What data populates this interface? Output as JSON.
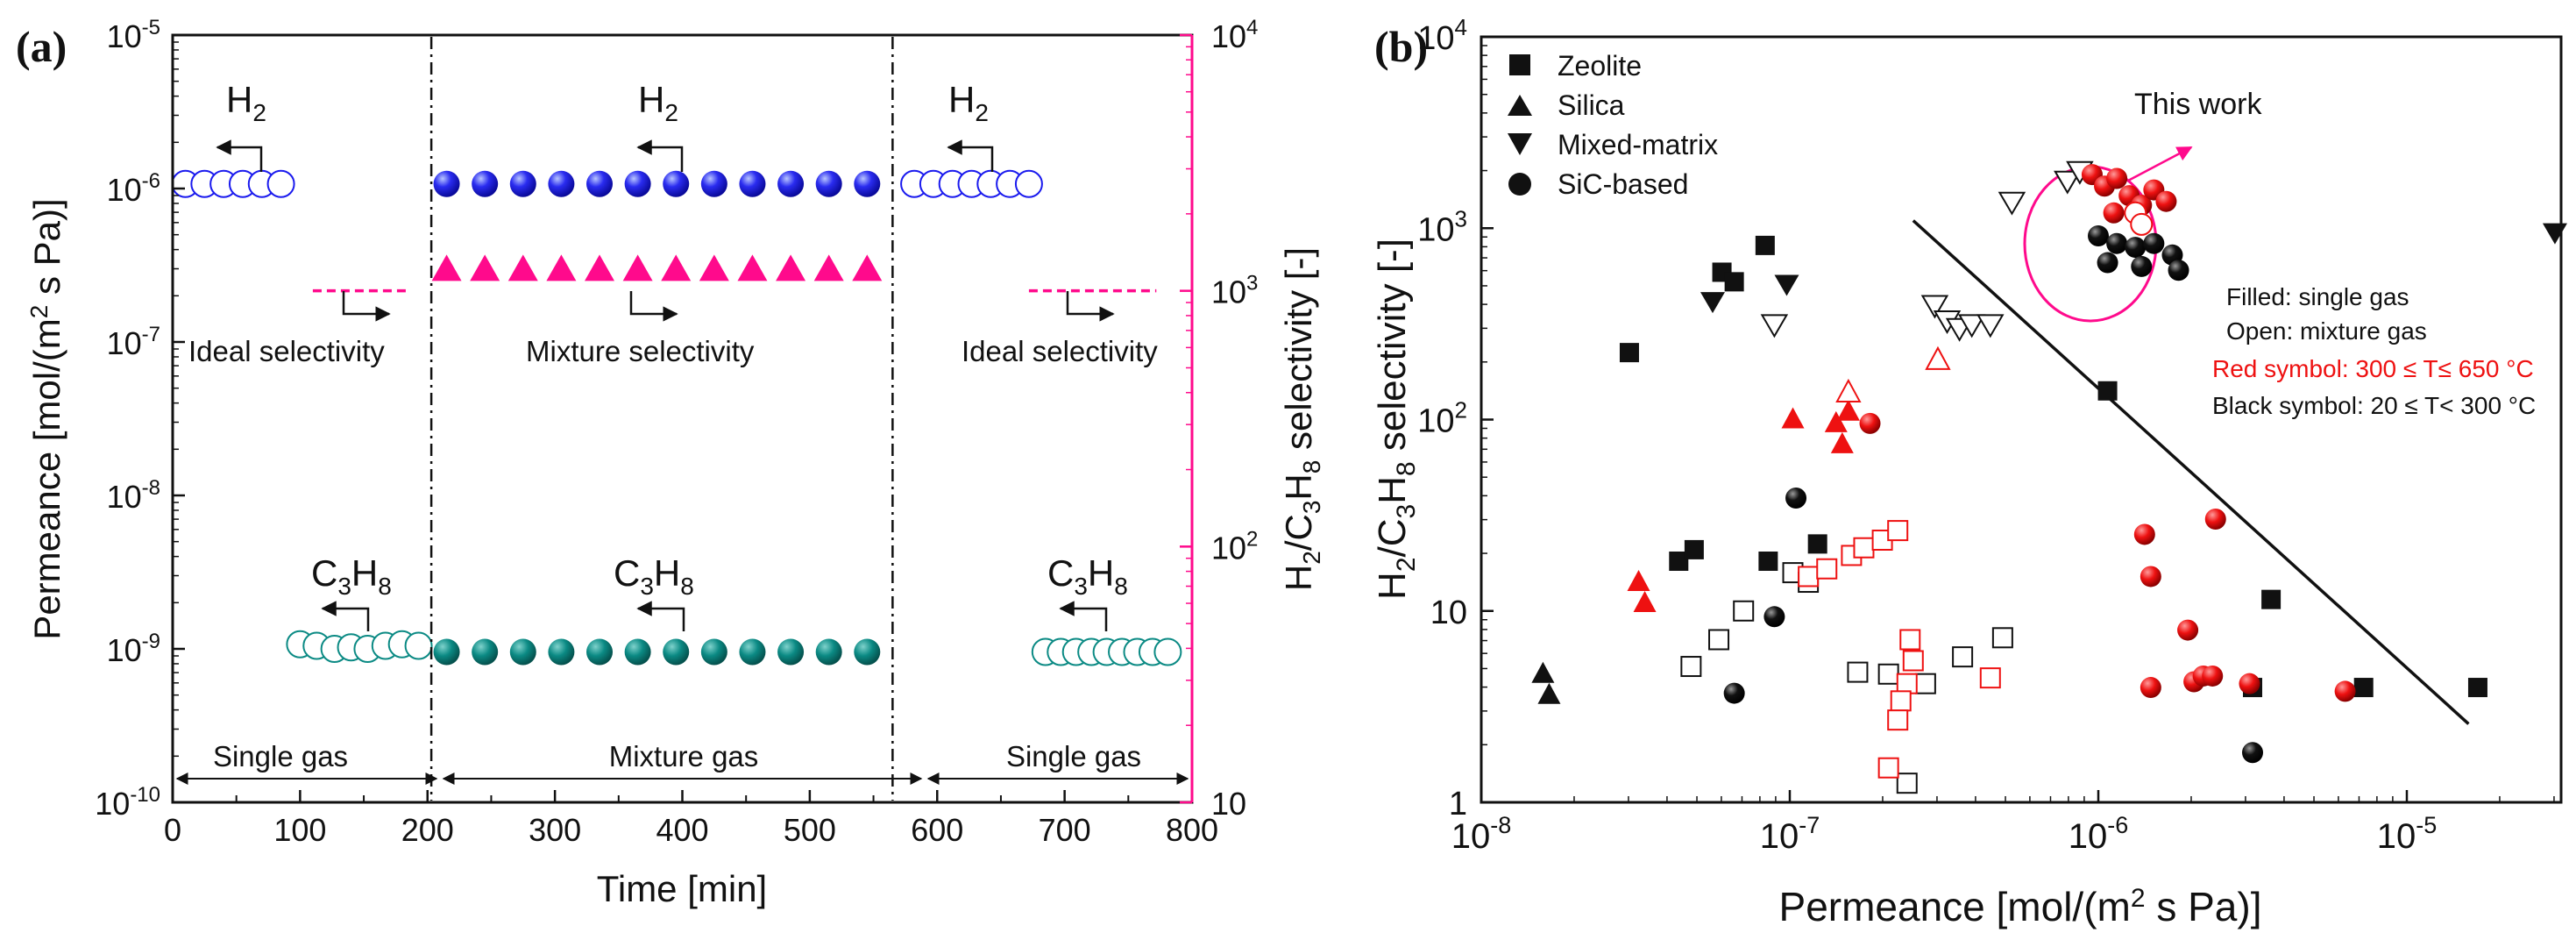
{
  "colors": {
    "h2_blue": "#1a1aee",
    "c3h8_teal": "#0b8a84",
    "sel_magenta": "#ff0a8c",
    "red": "#ee1111",
    "black": "#111111"
  },
  "chart_data": [
    {
      "panel_label": "(a)",
      "type": "scatter",
      "xlabel": "Time [min]",
      "ylabel": "Permeance [mol/(m² s Pa)]",
      "ylabel_right": "H2/C3H8 selectivity [-]",
      "xlim": [
        0,
        800
      ],
      "ylim_log": [
        -10,
        -5
      ],
      "ylim_right_log": [
        1,
        4
      ],
      "x_ticks": [
        "0",
        "100",
        "200",
        "300",
        "400",
        "500",
        "600",
        "700",
        "800"
      ],
      "y_ticks": [
        {
          "base": "10",
          "exp": "-10"
        },
        {
          "base": "10",
          "exp": "-9"
        },
        {
          "base": "10",
          "exp": "-8"
        },
        {
          "base": "10",
          "exp": "-7"
        },
        {
          "base": "10",
          "exp": "-6"
        },
        {
          "base": "10",
          "exp": "-5"
        }
      ],
      "y_right_ticks": [
        {
          "base": "10",
          "exp": ""
        },
        {
          "base": "10",
          "exp": "2"
        },
        {
          "base": "10",
          "exp": "3"
        },
        {
          "base": "10",
          "exp": "4"
        }
      ],
      "separators_min": [
        203,
        565
      ],
      "segment_labels": [
        "Single gas",
        "Mixture gas",
        "Single gas"
      ],
      "h2_label": "H2",
      "c3h8_label": "C3H8",
      "ideal_selectivity_label": "Ideal selectivity",
      "mixture_selectivity_label": "Mixture selectivity",
      "series": [
        {
          "name": "H2 single gas (open)",
          "axis": "left",
          "x": [
            10,
            25,
            40,
            55,
            70,
            85
          ],
          "log_y": [
            -5.97,
            -5.97,
            -5.97,
            -5.97,
            -5.97,
            -5.97
          ]
        },
        {
          "name": "H2 mixture (filled)",
          "axis": "left",
          "x": [
            215,
            245,
            275,
            305,
            335,
            365,
            395,
            425,
            455,
            485,
            515,
            545
          ],
          "log_y": [
            -5.97,
            -5.97,
            -5.97,
            -5.97,
            -5.97,
            -5.97,
            -5.97,
            -5.97,
            -5.97,
            -5.97,
            -5.97,
            -5.97
          ]
        },
        {
          "name": "H2 single gas 2 (open)",
          "axis": "left",
          "x": [
            582,
            597,
            612,
            627,
            642,
            657,
            672
          ],
          "log_y": [
            -5.97,
            -5.97,
            -5.97,
            -5.97,
            -5.97,
            -5.97,
            -5.97
          ]
        },
        {
          "name": "C3H8 single gas (open)",
          "axis": "left",
          "x": [
            100,
            113,
            127,
            140,
            153,
            167,
            180,
            193
          ],
          "log_y": [
            -8.97,
            -8.98,
            -9.0,
            -8.99,
            -9.0,
            -8.98,
            -8.97,
            -8.98
          ]
        },
        {
          "name": "C3H8 mixture (filled)",
          "axis": "left",
          "x": [
            215,
            245,
            275,
            305,
            335,
            365,
            395,
            425,
            455,
            485,
            515,
            545
          ],
          "log_y": [
            -9.02,
            -9.02,
            -9.02,
            -9.02,
            -9.02,
            -9.02,
            -9.02,
            -9.02,
            -9.02,
            -9.02,
            -9.02,
            -9.02
          ]
        },
        {
          "name": "C3H8 single gas 2 (open)",
          "axis": "left",
          "x": [
            685,
            697,
            709,
            721,
            733,
            745,
            757,
            769,
            781
          ],
          "log_y": [
            -9.02,
            -9.02,
            -9.02,
            -9.02,
            -9.02,
            -9.02,
            -9.02,
            -9.02,
            -9.02
          ]
        },
        {
          "name": "Mixture selectivity (filled triangles)",
          "axis": "right",
          "x": [
            215,
            245,
            275,
            305,
            335,
            365,
            395,
            425,
            455,
            485,
            515,
            545
          ],
          "log_y": [
            3.08,
            3.08,
            3.08,
            3.08,
            3.08,
            3.08,
            3.08,
            3.08,
            3.08,
            3.08,
            3.08,
            3.08
          ]
        },
        {
          "name": "Ideal selectivity (dashed)",
          "axis": "right",
          "segments": [
            [
              110,
              185
            ],
            [
              672,
              772
            ]
          ],
          "log_y": 3.0
        }
      ]
    },
    {
      "panel_label": "(b)",
      "type": "scatter",
      "xlabel": "Permeance [mol/(m² s Pa)]",
      "ylabel": "H2/C3H8 selectivity [-]",
      "xlim_log": [
        -8,
        -4.5
      ],
      "ylim_log": [
        0,
        4
      ],
      "x_ticks": [
        {
          "base": "10",
          "exp": "-8"
        },
        {
          "base": "10",
          "exp": "-7"
        },
        {
          "base": "10",
          "exp": "-6"
        },
        {
          "base": "10",
          "exp": "-5"
        }
      ],
      "y_ticks": [
        "1",
        "10",
        "10²",
        "10³",
        "10⁴"
      ],
      "y_tick_labels": [
        {
          "base": "1",
          "exp": ""
        },
        {
          "base": "10",
          "exp": ""
        },
        {
          "base": "10",
          "exp": "2"
        },
        {
          "base": "10",
          "exp": "3"
        },
        {
          "base": "10",
          "exp": "4"
        }
      ],
      "legend": [
        "Zeolite",
        "Silica",
        "Mixed-matrix",
        "SiC-based"
      ],
      "this_work_label": "This work",
      "annotations": [
        {
          "text": "Filled: single gas",
          "color": "#111111"
        },
        {
          "text": "Open: mixture gas",
          "color": "#111111"
        },
        {
          "text": "Red symbol: 300 ≤ T≤ 650 °C",
          "color": "#ee1111"
        },
        {
          "text": "Black symbol: 20 ≤ T< 300 °C",
          "color": "#111111"
        }
      ],
      "trend_line_log": [
        [
          -6.6,
          3.04
        ],
        [
          -4.8,
          0.41
        ]
      ],
      "points": [
        {
          "shape": "square",
          "fill": "black",
          "lx": -7.52,
          "ly": 2.35
        },
        {
          "shape": "square",
          "fill": "black",
          "lx": -7.22,
          "ly": 2.77
        },
        {
          "shape": "square",
          "fill": "black",
          "lx": -7.18,
          "ly": 2.72
        },
        {
          "shape": "square",
          "fill": "black",
          "lx": -7.08,
          "ly": 2.91
        },
        {
          "shape": "square",
          "fill": "black",
          "lx": -7.36,
          "ly": 1.26
        },
        {
          "shape": "square",
          "fill": "black",
          "lx": -7.31,
          "ly": 1.32
        },
        {
          "shape": "square",
          "fill": "black",
          "lx": -7.07,
          "ly": 1.26
        },
        {
          "shape": "square",
          "fill": "black",
          "lx": -6.91,
          "ly": 1.35
        },
        {
          "shape": "square",
          "fill": "black",
          "lx": -5.97,
          "ly": 2.15
        },
        {
          "shape": "square",
          "fill": "black",
          "lx": -5.44,
          "ly": 1.06
        },
        {
          "shape": "square",
          "fill": "black",
          "lx": -5.5,
          "ly": 0.6
        },
        {
          "shape": "square",
          "fill": "black",
          "lx": -5.14,
          "ly": 0.6
        },
        {
          "shape": "square",
          "fill": "black",
          "lx": -4.77,
          "ly": 0.6
        },
        {
          "shape": "triangle",
          "fill": "black",
          "lx": -7.8,
          "ly": 0.67
        },
        {
          "shape": "triangle",
          "fill": "black",
          "lx": -7.78,
          "ly": 0.56
        },
        {
          "shape": "triangle",
          "fill": "red",
          "lx": -7.49,
          "ly": 1.15
        },
        {
          "shape": "triangle",
          "fill": "red",
          "lx": -7.47,
          "ly": 1.04
        },
        {
          "shape": "triangle",
          "fill": "red",
          "lx": -6.99,
          "ly": 2.0
        },
        {
          "shape": "triangle",
          "fill": "red",
          "lx": -6.85,
          "ly": 1.98
        },
        {
          "shape": "triangle",
          "fill": "red",
          "lx": -6.83,
          "ly": 1.87
        },
        {
          "shape": "triangle",
          "fill": "red",
          "lx": -6.81,
          "ly": 2.04
        },
        {
          "shape": "invtriangle",
          "fill": "black",
          "lx": -7.25,
          "ly": 2.62
        },
        {
          "shape": "invtriangle",
          "fill": "black",
          "lx": -7.01,
          "ly": 2.71
        },
        {
          "shape": "invtriangle",
          "fill": "black",
          "lx": -4.52,
          "ly": 2.98
        },
        {
          "shape": "circle",
          "fill": "black",
          "lx": -6.98,
          "ly": 1.59
        },
        {
          "shape": "circle",
          "fill": "black",
          "lx": -7.05,
          "ly": 0.97
        },
        {
          "shape": "circle",
          "fill": "black",
          "lx": -7.18,
          "ly": 0.57
        },
        {
          "shape": "circle",
          "fill": "black",
          "lx": -5.5,
          "ly": 0.26
        },
        {
          "shape": "circle",
          "fill": "red",
          "lx": -6.74,
          "ly": 1.98
        },
        {
          "shape": "circle",
          "fill": "red",
          "lx": -5.85,
          "ly": 1.4
        },
        {
          "shape": "circle",
          "fill": "red",
          "lx": -5.83,
          "ly": 1.18
        },
        {
          "shape": "circle",
          "fill": "red",
          "lx": -5.83,
          "ly": 0.6
        },
        {
          "shape": "circle",
          "fill": "red",
          "lx": -5.71,
          "ly": 0.9
        },
        {
          "shape": "circle",
          "fill": "red",
          "lx": -5.69,
          "ly": 0.63
        },
        {
          "shape": "circle",
          "fill": "red",
          "lx": -5.66,
          "ly": 0.66
        },
        {
          "shape": "circle",
          "fill": "red",
          "lx": -5.62,
          "ly": 1.48
        },
        {
          "shape": "circle",
          "fill": "red",
          "lx": -5.63,
          "ly": 0.66
        },
        {
          "shape": "circle",
          "fill": "red",
          "lx": -5.51,
          "ly": 0.62
        },
        {
          "shape": "circle",
          "fill": "red",
          "lx": -5.2,
          "ly": 0.58
        },
        {
          "shape": "square",
          "fill": "none",
          "lx": -7.32,
          "ly": 0.71
        },
        {
          "shape": "square",
          "fill": "none",
          "lx": -7.23,
          "ly": 0.85
        },
        {
          "shape": "square",
          "fill": "none",
          "lx": -7.15,
          "ly": 1.0
        },
        {
          "shape": "square",
          "fill": "none",
          "lx": -6.99,
          "ly": 1.2
        },
        {
          "shape": "square",
          "fill": "none",
          "lx": -6.94,
          "ly": 1.15
        },
        {
          "shape": "square",
          "fill": "none",
          "lx": -6.78,
          "ly": 0.68
        },
        {
          "shape": "square",
          "fill": "none",
          "lx": -6.68,
          "ly": 0.67
        },
        {
          "shape": "square",
          "fill": "none",
          "lx": -6.62,
          "ly": 0.1
        },
        {
          "shape": "square",
          "fill": "none",
          "lx": -6.56,
          "ly": 0.62
        },
        {
          "shape": "square",
          "fill": "none",
          "lx": -6.44,
          "ly": 0.76
        },
        {
          "shape": "square",
          "fill": "none",
          "lx": -6.31,
          "ly": 0.86
        },
        {
          "shape": "square",
          "fill": "red-open",
          "lx": -6.94,
          "ly": 1.18
        },
        {
          "shape": "square",
          "fill": "red-open",
          "lx": -6.88,
          "ly": 1.22
        },
        {
          "shape": "square",
          "fill": "red-open",
          "lx": -6.8,
          "ly": 1.29
        },
        {
          "shape": "square",
          "fill": "red-open",
          "lx": -6.76,
          "ly": 1.33
        },
        {
          "shape": "square",
          "fill": "red-open",
          "lx": -6.7,
          "ly": 1.37
        },
        {
          "shape": "square",
          "fill": "red-open",
          "lx": -6.65,
          "ly": 1.42
        },
        {
          "shape": "square",
          "fill": "red-open",
          "lx": -6.61,
          "ly": 0.85
        },
        {
          "shape": "square",
          "fill": "red-open",
          "lx": -6.6,
          "ly": 0.74
        },
        {
          "shape": "square",
          "fill": "red-open",
          "lx": -6.62,
          "ly": 0.62
        },
        {
          "shape": "square",
          "fill": "red-open",
          "lx": -6.64,
          "ly": 0.53
        },
        {
          "shape": "square",
          "fill": "red-open",
          "lx": -6.65,
          "ly": 0.43
        },
        {
          "shape": "square",
          "fill": "red-open",
          "lx": -6.68,
          "ly": 0.18
        },
        {
          "shape": "square",
          "fill": "red-open",
          "lx": -6.35,
          "ly": 0.65
        },
        {
          "shape": "triangle",
          "fill": "red-open",
          "lx": -6.81,
          "ly": 2.14
        },
        {
          "shape": "triangle",
          "fill": "red-open",
          "lx": -6.52,
          "ly": 2.31
        },
        {
          "shape": "invtriangle",
          "fill": "none",
          "lx": -7.05,
          "ly": 2.5
        },
        {
          "shape": "invtriangle",
          "fill": "none",
          "lx": -6.53,
          "ly": 2.6
        },
        {
          "shape": "invtriangle",
          "fill": "none",
          "lx": -6.49,
          "ly": 2.52
        },
        {
          "shape": "invtriangle",
          "fill": "none",
          "lx": -6.45,
          "ly": 2.48
        },
        {
          "shape": "invtriangle",
          "fill": "none",
          "lx": -6.41,
          "ly": 2.5
        },
        {
          "shape": "invtriangle",
          "fill": "none",
          "lx": -6.35,
          "ly": 2.5
        },
        {
          "shape": "invtriangle",
          "fill": "none",
          "lx": -6.28,
          "ly": 3.14
        },
        {
          "shape": "invtriangle",
          "fill": "none",
          "lx": -6.1,
          "ly": 3.25
        },
        {
          "shape": "invtriangle",
          "fill": "none",
          "lx": -6.06,
          "ly": 3.3
        },
        {
          "shape": "circle",
          "fill": "red",
          "lx": -6.02,
          "ly": 3.28
        },
        {
          "shape": "circle",
          "fill": "red",
          "lx": -5.98,
          "ly": 3.22
        },
        {
          "shape": "circle",
          "fill": "red",
          "lx": -5.94,
          "ly": 3.26
        },
        {
          "shape": "circle",
          "fill": "red",
          "lx": -5.9,
          "ly": 3.17
        },
        {
          "shape": "circle",
          "fill": "red",
          "lx": -5.86,
          "ly": 3.12
        },
        {
          "shape": "circle",
          "fill": "red",
          "lx": -5.82,
          "ly": 3.2
        },
        {
          "shape": "circle",
          "fill": "red",
          "lx": -5.78,
          "ly": 3.14
        },
        {
          "shape": "circle",
          "fill": "red",
          "lx": -5.95,
          "ly": 3.08
        },
        {
          "shape": "circle",
          "fill": "red-open",
          "lx": -5.88,
          "ly": 3.08
        },
        {
          "shape": "circle",
          "fill": "red-open",
          "lx": -5.86,
          "ly": 3.02
        },
        {
          "shape": "circle",
          "fill": "black",
          "lx": -6.0,
          "ly": 2.96
        },
        {
          "shape": "circle",
          "fill": "black",
          "lx": -5.94,
          "ly": 2.92
        },
        {
          "shape": "circle",
          "fill": "black",
          "lx": -5.88,
          "ly": 2.9
        },
        {
          "shape": "circle",
          "fill": "black",
          "lx": -5.82,
          "ly": 2.92
        },
        {
          "shape": "circle",
          "fill": "black",
          "lx": -5.76,
          "ly": 2.86
        },
        {
          "shape": "circle",
          "fill": "black",
          "lx": -5.97,
          "ly": 2.82
        },
        {
          "shape": "circle",
          "fill": "black",
          "lx": -5.86,
          "ly": 2.8
        },
        {
          "shape": "circle",
          "fill": "black",
          "lx": -5.74,
          "ly": 2.78
        }
      ]
    }
  ]
}
